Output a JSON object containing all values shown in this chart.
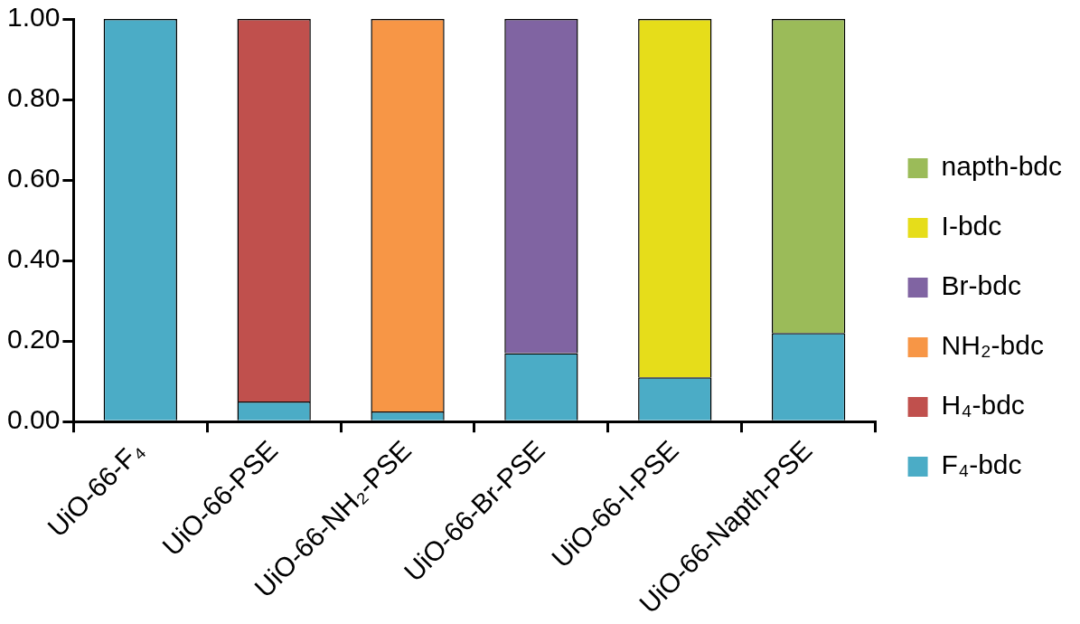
{
  "chart_data": {
    "type": "bar",
    "stacked": true,
    "categories": [
      "UiO-66-F₄",
      "UiO-66-PSE",
      "UiO-66-NH₂-PSE",
      "UiO-66-Br-PSE",
      "UiO-66-I-PSE",
      "UiO-66-Napth-PSE"
    ],
    "series": [
      {
        "name": "F₄-bdc",
        "color": "#4bacc6",
        "values": [
          1.0,
          0.05,
          0.025,
          0.17,
          0.11,
          0.22
        ]
      },
      {
        "name": "H₄-bdc",
        "color": "#c0504d",
        "values": [
          null,
          0.95,
          null,
          null,
          null,
          null
        ]
      },
      {
        "name": "NH₂-bdc",
        "color": "#f79646",
        "values": [
          null,
          null,
          0.975,
          null,
          null,
          null
        ]
      },
      {
        "name": "Br-bdc",
        "color": "#8064a2",
        "values": [
          null,
          null,
          null,
          0.83,
          null,
          null
        ]
      },
      {
        "name": "I-bdc",
        "color": "#e6dd1a",
        "values": [
          null,
          null,
          null,
          null,
          0.89,
          null
        ]
      },
      {
        "name": "napth-bdc",
        "color": "#9bbb59",
        "values": [
          null,
          null,
          null,
          null,
          null,
          0.78
        ]
      }
    ],
    "ylim": [
      0,
      1
    ],
    "yticks": [
      {
        "value": 0,
        "label": "0.00"
      },
      {
        "value": 0.2,
        "label": "0.20"
      },
      {
        "value": 0.4,
        "label": "0.40"
      },
      {
        "value": 0.6,
        "label": "0.60"
      },
      {
        "value": 0.8,
        "label": "0.80"
      },
      {
        "value": 1,
        "label": "1.00"
      }
    ],
    "grid": false,
    "legend": "right"
  }
}
